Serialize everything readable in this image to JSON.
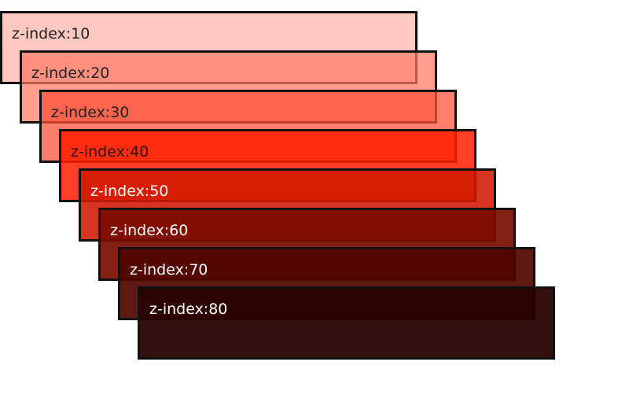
{
  "layers": [
    {
      "label": "z-index:10",
      "z": 10
    },
    {
      "label": "z-index:20",
      "z": 20
    },
    {
      "label": "z-index:30",
      "z": 30
    },
    {
      "label": "z-index:40",
      "z": 40
    },
    {
      "label": "z-index:50",
      "z": 50
    },
    {
      "label": "z-index:60",
      "z": 60
    },
    {
      "label": "z-index:70",
      "z": 70
    },
    {
      "label": "z-index:80",
      "z": 80
    }
  ]
}
